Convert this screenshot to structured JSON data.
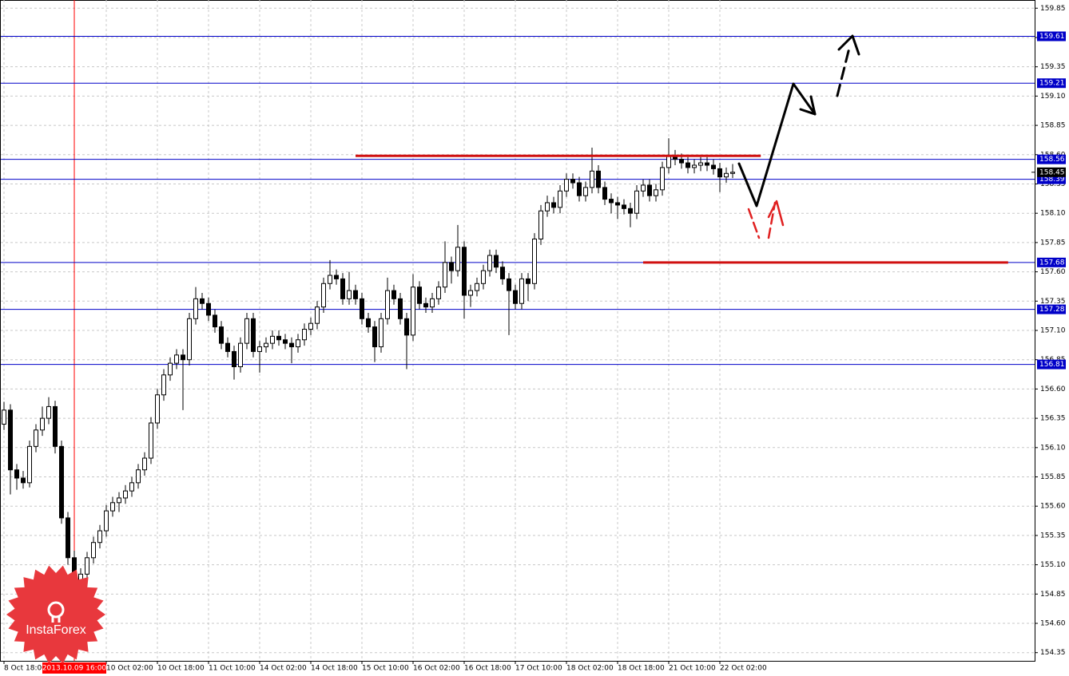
{
  "chart_data": {
    "type": "candlestick",
    "categories": [
      "8 Oct 18:00",
      null,
      null,
      null,
      null,
      null,
      null,
      null,
      null,
      null,
      null,
      "2013.10.09 16:00",
      null,
      null,
      null,
      null,
      "10 Oct 02:00",
      null,
      null,
      null,
      null,
      null,
      null,
      null,
      "10 Oct 18:00",
      null,
      null,
      null,
      null,
      null,
      null,
      null,
      "11 Oct 10:00",
      null,
      null,
      null,
      null,
      null,
      null,
      null,
      "14 Oct 02:00",
      null,
      null,
      null,
      null,
      null,
      null,
      null,
      "14 Oct 18:00",
      null,
      null,
      null,
      null,
      null,
      null,
      null,
      "15 Oct 10:00",
      null,
      null,
      null,
      null,
      null,
      null,
      null,
      "16 Oct 02:00",
      null,
      null,
      null,
      null,
      null,
      null,
      null,
      "16 Oct 18:00",
      null,
      null,
      null,
      null,
      null,
      null,
      null,
      "17 Oct 10:00",
      null,
      null,
      null,
      null,
      null,
      null,
      null,
      "18 Oct 02:00",
      null,
      null,
      null,
      null,
      null,
      null,
      null,
      "18 Oct 18:00",
      null,
      null,
      null,
      null,
      null,
      null,
      null,
      "21 Oct 10:00",
      null,
      null,
      null,
      null,
      null,
      null,
      null,
      "22 Oct 02:00",
      null,
      null
    ],
    "open": [
      156.3,
      156.42,
      155.91,
      155.84,
      155.8,
      156.11,
      156.25,
      156.35,
      156.45,
      156.11,
      155.5,
      155.16,
      154.92,
      155.02,
      155.16,
      155.29,
      155.39,
      155.56,
      155.63,
      155.67,
      155.73,
      155.8,
      155.91,
      156.01,
      156.31,
      156.55,
      156.72,
      156.82,
      156.89,
      156.85,
      157.2,
      157.37,
      157.33,
      157.23,
      157.13,
      156.99,
      156.92,
      156.79,
      156.99,
      157.2,
      156.92,
      156.96,
      156.99,
      157.05,
      157.02,
      156.99,
      156.96,
      157.02,
      157.11,
      157.16,
      157.3,
      157.5,
      157.57,
      157.54,
      157.37,
      157.44,
      157.37,
      157.2,
      157.13,
      156.96,
      157.2,
      157.44,
      157.37,
      157.2,
      157.06,
      157.47,
      157.33,
      157.3,
      157.37,
      157.47,
      157.68,
      157.61,
      157.81,
      157.4,
      157.44,
      157.5,
      157.61,
      157.74,
      157.64,
      157.54,
      157.44,
      157.33,
      157.54,
      157.5,
      157.88,
      158.12,
      158.19,
      158.15,
      158.29,
      158.39,
      158.36,
      158.25,
      158.32,
      158.46,
      158.32,
      158.22,
      158.19,
      158.17,
      158.14,
      158.1,
      158.29,
      158.34,
      158.25,
      158.3,
      158.49,
      158.59,
      158.56,
      158.53,
      158.49,
      158.51,
      158.53,
      158.51,
      158.48,
      158.41,
      158.44
    ],
    "high": [
      156.49,
      156.47,
      155.96,
      155.9,
      156.16,
      156.3,
      156.45,
      156.53,
      156.5,
      156.16,
      155.55,
      155.22,
      155.07,
      155.21,
      155.34,
      155.44,
      155.61,
      155.68,
      155.72,
      155.78,
      155.85,
      155.96,
      156.06,
      156.36,
      156.6,
      156.77,
      156.87,
      156.94,
      156.94,
      157.25,
      157.47,
      157.42,
      157.38,
      157.28,
      157.18,
      157.04,
      156.97,
      157.04,
      157.25,
      157.25,
      157.01,
      157.04,
      157.1,
      157.1,
      157.07,
      157.04,
      157.07,
      157.16,
      157.21,
      157.35,
      157.55,
      157.7,
      157.62,
      157.59,
      157.6,
      157.49,
      157.42,
      157.25,
      157.18,
      157.25,
      157.55,
      157.49,
      157.42,
      157.25,
      157.58,
      157.52,
      157.38,
      157.42,
      157.52,
      157.86,
      157.73,
      158.0,
      157.86,
      157.49,
      157.55,
      157.66,
      157.79,
      157.79,
      157.69,
      157.59,
      157.49,
      157.59,
      157.59,
      157.93,
      158.17,
      158.25,
      158.24,
      158.34,
      158.44,
      158.44,
      158.41,
      158.37,
      158.66,
      158.51,
      158.37,
      158.27,
      158.24,
      158.22,
      158.19,
      158.34,
      158.39,
      158.39,
      158.35,
      158.54,
      158.74,
      158.64,
      158.61,
      158.58,
      158.56,
      158.58,
      158.58,
      158.56,
      158.53,
      158.49,
      158.52
    ],
    "low": [
      156.25,
      155.7,
      155.74,
      155.75,
      155.76,
      156.06,
      156.2,
      156.3,
      156.05,
      155.45,
      155.1,
      154.7,
      154.85,
      154.97,
      155.11,
      155.24,
      155.34,
      155.51,
      155.55,
      155.62,
      155.68,
      155.75,
      155.86,
      155.96,
      156.26,
      156.5,
      156.67,
      156.77,
      156.42,
      156.8,
      157.15,
      157.28,
      157.18,
      157.08,
      156.94,
      156.87,
      156.68,
      156.74,
      156.94,
      156.87,
      156.74,
      156.91,
      156.94,
      156.97,
      156.94,
      156.82,
      156.91,
      156.97,
      157.06,
      157.11,
      157.25,
      157.45,
      157.49,
      157.32,
      157.32,
      157.32,
      157.15,
      157.08,
      156.83,
      156.91,
      157.15,
      157.32,
      157.15,
      156.77,
      157.01,
      157.28,
      157.25,
      157.25,
      157.32,
      157.42,
      157.5,
      157.56,
      157.2,
      157.3,
      157.39,
      157.45,
      157.56,
      157.59,
      157.49,
      157.06,
      157.28,
      157.28,
      157.35,
      157.45,
      157.83,
      158.07,
      158.1,
      158.1,
      158.24,
      158.31,
      158.2,
      158.2,
      158.27,
      158.27,
      158.17,
      158.1,
      158.05,
      158.09,
      157.98,
      158.05,
      158.24,
      158.2,
      158.2,
      158.25,
      158.44,
      158.51,
      158.48,
      158.44,
      158.44,
      158.46,
      158.46,
      158.43,
      158.28,
      158.36,
      158.4
    ],
    "close": [
      156.42,
      155.91,
      155.84,
      155.8,
      156.11,
      156.25,
      156.35,
      156.45,
      156.11,
      155.5,
      155.16,
      154.92,
      155.02,
      155.16,
      155.29,
      155.39,
      155.56,
      155.63,
      155.67,
      155.73,
      155.8,
      155.91,
      156.01,
      156.31,
      156.55,
      156.72,
      156.82,
      156.89,
      156.85,
      157.2,
      157.37,
      157.33,
      157.23,
      157.13,
      156.99,
      156.92,
      156.79,
      156.99,
      157.2,
      156.92,
      156.96,
      156.99,
      157.05,
      157.02,
      156.99,
      156.96,
      157.02,
      157.11,
      157.16,
      157.3,
      157.5,
      157.57,
      157.54,
      157.37,
      157.44,
      157.37,
      157.2,
      157.13,
      156.96,
      157.2,
      157.44,
      157.37,
      157.2,
      157.06,
      157.47,
      157.33,
      157.3,
      157.37,
      157.47,
      157.68,
      157.61,
      157.81,
      157.4,
      157.44,
      157.5,
      157.61,
      157.74,
      157.64,
      157.54,
      157.44,
      157.33,
      157.54,
      157.5,
      157.88,
      158.12,
      158.19,
      158.15,
      158.29,
      158.39,
      158.36,
      158.25,
      158.32,
      158.46,
      158.32,
      158.22,
      158.19,
      158.17,
      158.14,
      158.1,
      158.29,
      158.34,
      158.25,
      158.3,
      158.49,
      158.59,
      158.56,
      158.53,
      158.49,
      158.51,
      158.53,
      158.51,
      158.48,
      158.41,
      158.44,
      158.45
    ],
    "ylim": [
      154.28,
      159.92
    ],
    "yticks": [
      154.35,
      {
        "value": 154.6,
        "label": "154.60"
      },
      154.85,
      {
        "value": 155.1,
        "label": "155.10"
      },
      155.35,
      {
        "value": 155.6,
        "label": "155.60"
      },
      155.85,
      {
        "value": 156.1,
        "label": "156.10"
      },
      156.35,
      {
        "value": 156.6,
        "label": "156.60"
      },
      156.85,
      {
        "value": 157.1,
        "label": "157.10"
      },
      157.35,
      {
        "value": 157.6,
        "label": "157.60"
      },
      157.85,
      {
        "value": 158.1,
        "label": "158.10"
      },
      158.35,
      {
        "value": 158.6,
        "label": "158.60"
      },
      158.85,
      {
        "value": 159.1,
        "label": "159.10"
      },
      159.35,
      {
        "value": 159.6,
        "label": "159.60"
      },
      159.85
    ],
    "grid": true,
    "up_color": "#ffffff",
    "down_color": "#000000",
    "levels": [
      159.61,
      159.21,
      158.56,
      158.39,
      157.68,
      157.28,
      156.81
    ],
    "level_color": "#0000c8",
    "last_price": 158.45,
    "crosshair": {
      "category": 11,
      "color": "#ff0000"
    },
    "red_lines": [
      {
        "value": 158.59,
        "from": 55,
        "to": 118.4
      },
      {
        "value": 157.68,
        "from": 100,
        "to": 157.1
      }
    ],
    "red_line_color": "#d01010"
  },
  "watermark": "InstaForex"
}
